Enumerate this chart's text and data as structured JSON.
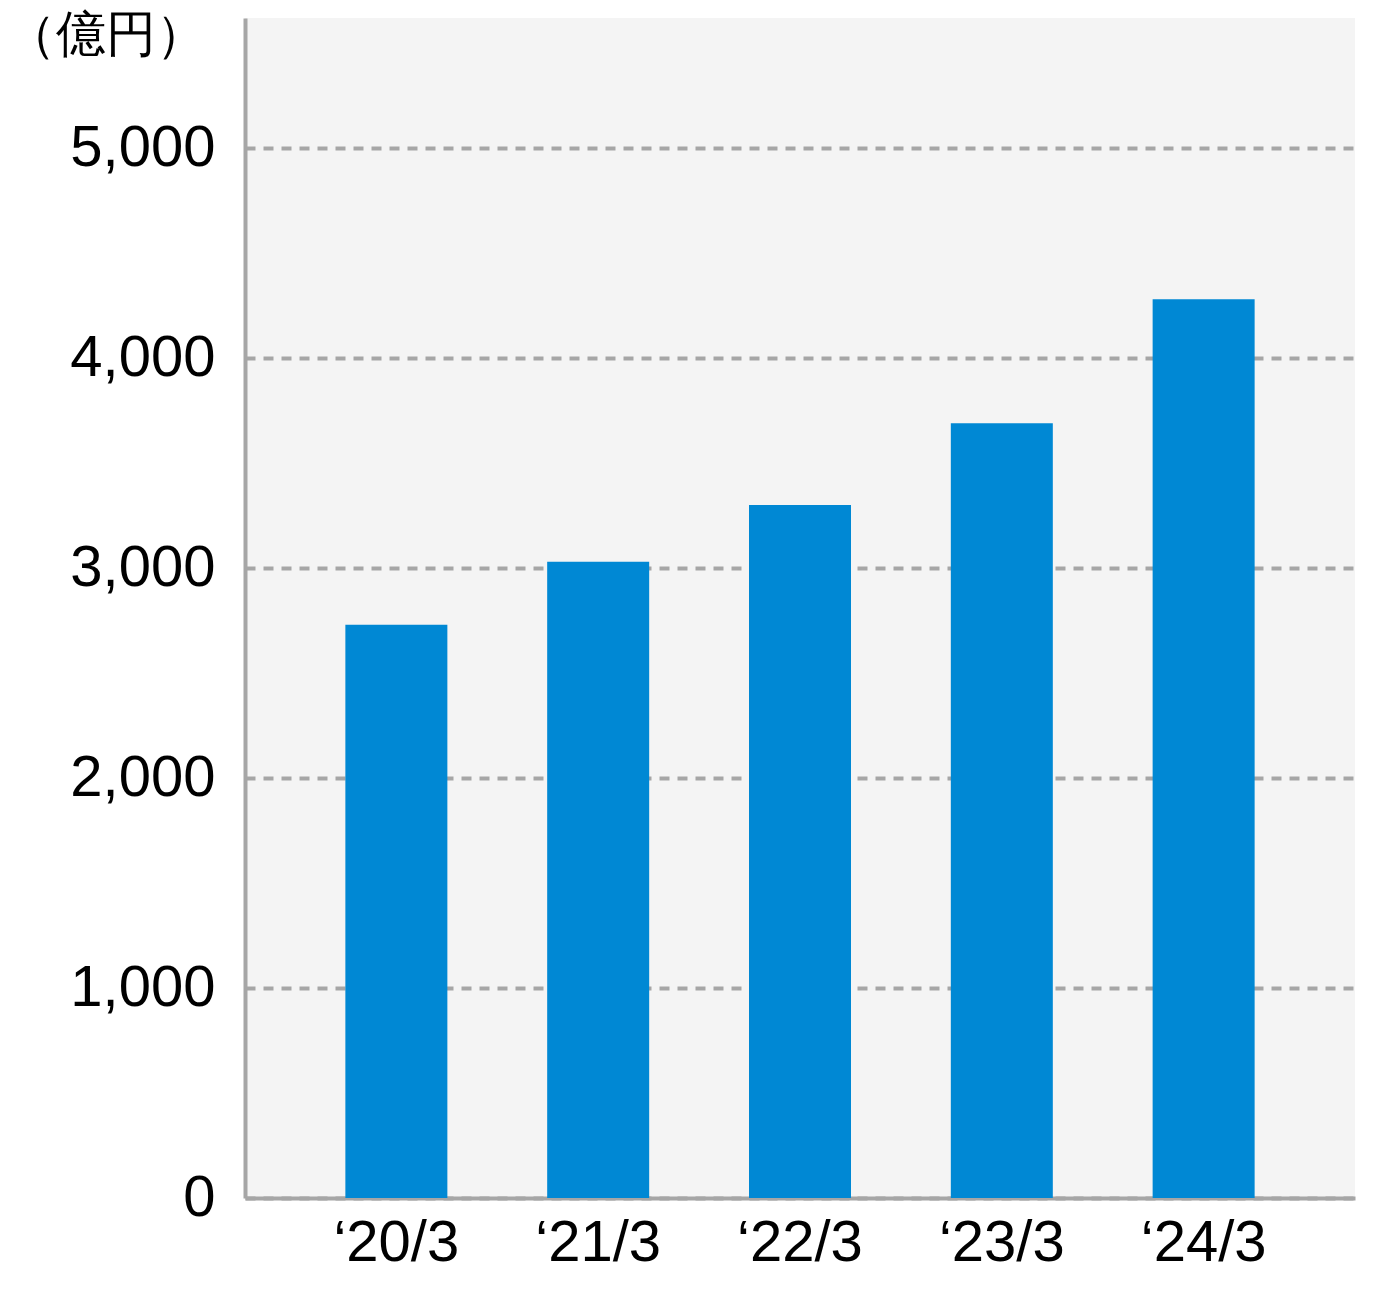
{
  "chart_data": {
    "type": "bar",
    "ylabel": "（億円）",
    "categories": [
      "‘20/3",
      "‘21/3",
      "‘22/3",
      "‘23/3",
      "‘24/3"
    ],
    "values": [
      2730,
      3030,
      3300,
      3690,
      4280
    ],
    "color": "#0088d4",
    "ylim": [
      0,
      5620
    ],
    "yticks": [
      0,
      {
        "value": 1000,
        "label": "1,000"
      },
      {
        "value": 2000,
        "label": "2,000"
      },
      {
        "value": 3000,
        "label": "3,000"
      },
      {
        "value": 4000,
        "label": "4,000"
      },
      {
        "value": 5000,
        "label": "5,000"
      }
    ],
    "grid": "y"
  }
}
